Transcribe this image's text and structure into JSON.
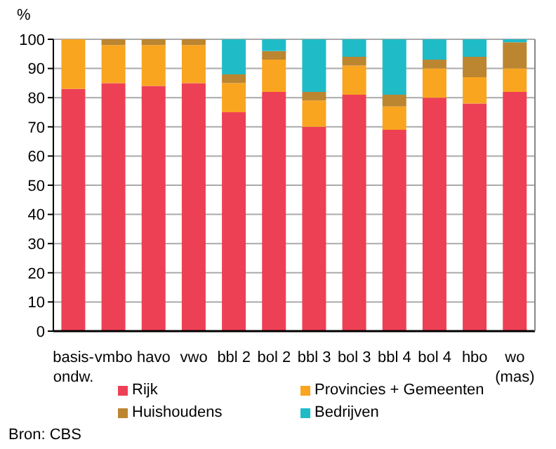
{
  "chart_data": {
    "type": "bar",
    "stacked": true,
    "ylabel": "%",
    "categories": [
      "basis-\nondw.",
      "vmbo",
      "havo",
      "vwo",
      "bbl 2",
      "bol 2",
      "bbl 3",
      "bol 3",
      "bbl 4",
      "bol 4",
      "hbo",
      "wo\n(mas)"
    ],
    "series": [
      {
        "name": "Rijk",
        "color": "#ee4055",
        "values": [
          83,
          85,
          84,
          85,
          75,
          82,
          70,
          81,
          69,
          80,
          78,
          82
        ]
      },
      {
        "name": "Provincies + Gemeenten",
        "color": "#f9a51f",
        "values": [
          17,
          13,
          14,
          13,
          10,
          11,
          9,
          10,
          8,
          10,
          9,
          8
        ]
      },
      {
        "name": "Huishoudens",
        "color": "#bc8530",
        "values": [
          0,
          2,
          2,
          2,
          3,
          3,
          3,
          3,
          4,
          3,
          7,
          9
        ]
      },
      {
        "name": "Bedrijven",
        "color": "#1fbcc8",
        "values": [
          0,
          0,
          0,
          0,
          12,
          4,
          18,
          6,
          19,
          7,
          6,
          1
        ]
      }
    ],
    "ylim": [
      0,
      100
    ],
    "yticks": [
      0,
      10,
      20,
      30,
      40,
      50,
      60,
      70,
      80,
      90,
      100
    ],
    "grid": "y",
    "legend": "bottom",
    "annotations": [
      "Bron: CBS"
    ]
  }
}
